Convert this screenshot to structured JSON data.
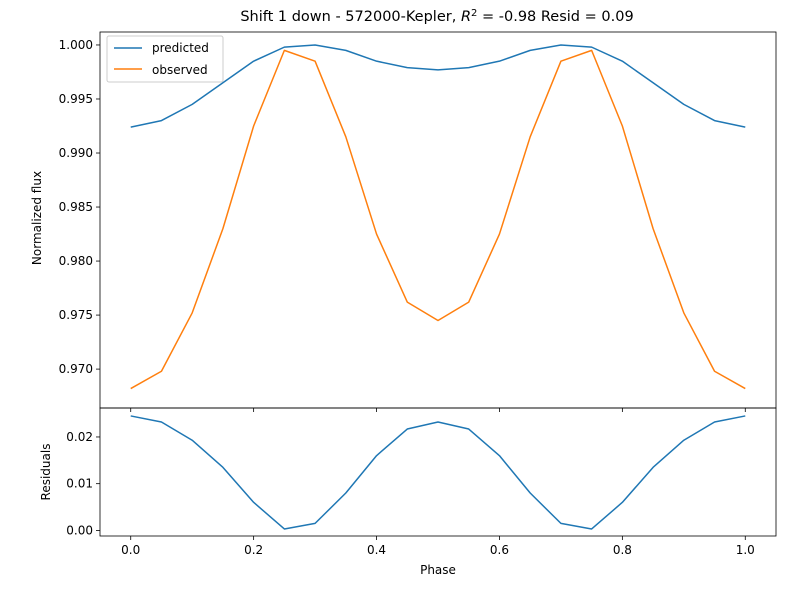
{
  "chart_data": [
    {
      "type": "line",
      "title_main": "Shift 1 down - 572000-Kepler, ",
      "title_r2_symbol": "R",
      "title_r2_sup": "2",
      "title_r2_value": " = -0.98 Resid = 0.09",
      "xlabel": "",
      "ylabel": "Normalized flux",
      "xlim": [
        -0.05,
        1.05
      ],
      "ylim": [
        0.9664,
        1.0012
      ],
      "xticks": [
        0.0,
        0.2,
        0.4,
        0.6,
        0.8,
        1.0
      ],
      "yticks": [
        0.97,
        0.975,
        0.98,
        0.985,
        0.99,
        0.995,
        1.0
      ],
      "ytick_labels": [
        "0.970",
        "0.975",
        "0.980",
        "0.985",
        "0.990",
        "0.995",
        "1.000"
      ],
      "legend_position": "upper-left",
      "x": [
        0.0,
        0.05,
        0.1,
        0.15,
        0.2,
        0.25,
        0.3,
        0.35,
        0.4,
        0.45,
        0.5,
        0.55,
        0.6,
        0.65,
        0.7,
        0.75,
        0.8,
        0.85,
        0.9,
        0.95,
        1.0
      ],
      "series": [
        {
          "name": "predicted",
          "color": "#1f77b4",
          "values": [
            0.9924,
            0.993,
            0.9945,
            0.9965,
            0.9985,
            0.9998,
            1.0,
            0.9995,
            0.9985,
            0.9979,
            0.9977,
            0.9979,
            0.9985,
            0.9995,
            1.0,
            0.9998,
            0.9985,
            0.9965,
            0.9945,
            0.993,
            0.9924
          ]
        },
        {
          "name": "observed",
          "color": "#ff7f0e",
          "values": [
            0.9682,
            0.9698,
            0.9752,
            0.983,
            0.9925,
            0.9995,
            0.9985,
            0.9915,
            0.9825,
            0.9762,
            0.9745,
            0.9762,
            0.9825,
            0.9915,
            0.9985,
            0.9995,
            0.9925,
            0.983,
            0.9752,
            0.9698,
            0.9682
          ]
        }
      ]
    },
    {
      "type": "line",
      "xlabel": "Phase",
      "ylabel": "Residuals",
      "xlim": [
        -0.05,
        1.05
      ],
      "ylim": [
        -0.0012,
        0.0262
      ],
      "xticks": [
        0.0,
        0.2,
        0.4,
        0.6,
        0.8,
        1.0
      ],
      "xtick_labels": [
        "0.0",
        "0.2",
        "0.4",
        "0.6",
        "0.8",
        "1.0"
      ],
      "yticks": [
        0.0,
        0.01,
        0.02
      ],
      "ytick_labels": [
        "0.00",
        "0.01",
        "0.02"
      ],
      "x": [
        0.0,
        0.05,
        0.1,
        0.15,
        0.2,
        0.25,
        0.3,
        0.35,
        0.4,
        0.45,
        0.5,
        0.55,
        0.6,
        0.65,
        0.7,
        0.75,
        0.8,
        0.85,
        0.9,
        0.95,
        1.0
      ],
      "series": [
        {
          "color": "#1f77b4",
          "values": [
            0.0245,
            0.0232,
            0.0193,
            0.0135,
            0.006,
            0.0003,
            0.0015,
            0.008,
            0.016,
            0.0217,
            0.0232,
            0.0217,
            0.016,
            0.008,
            0.0015,
            0.0003,
            0.006,
            0.0135,
            0.0193,
            0.0232,
            0.0245
          ]
        }
      ]
    }
  ]
}
